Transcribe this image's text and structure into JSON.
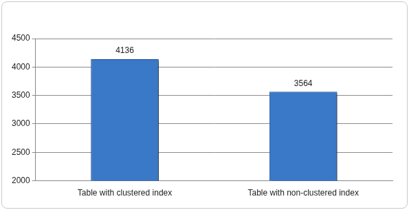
{
  "chart_data": {
    "type": "bar",
    "categories": [
      "Table with clustered index",
      "Table with non-clustered index"
    ],
    "values": [
      4136,
      3564
    ],
    "color": "#3a78c8",
    "ylim": [
      2000,
      4500
    ],
    "yticks": [
      2000,
      2500,
      3000,
      3500,
      4000,
      4500
    ],
    "grid": true,
    "data_labels": true
  }
}
